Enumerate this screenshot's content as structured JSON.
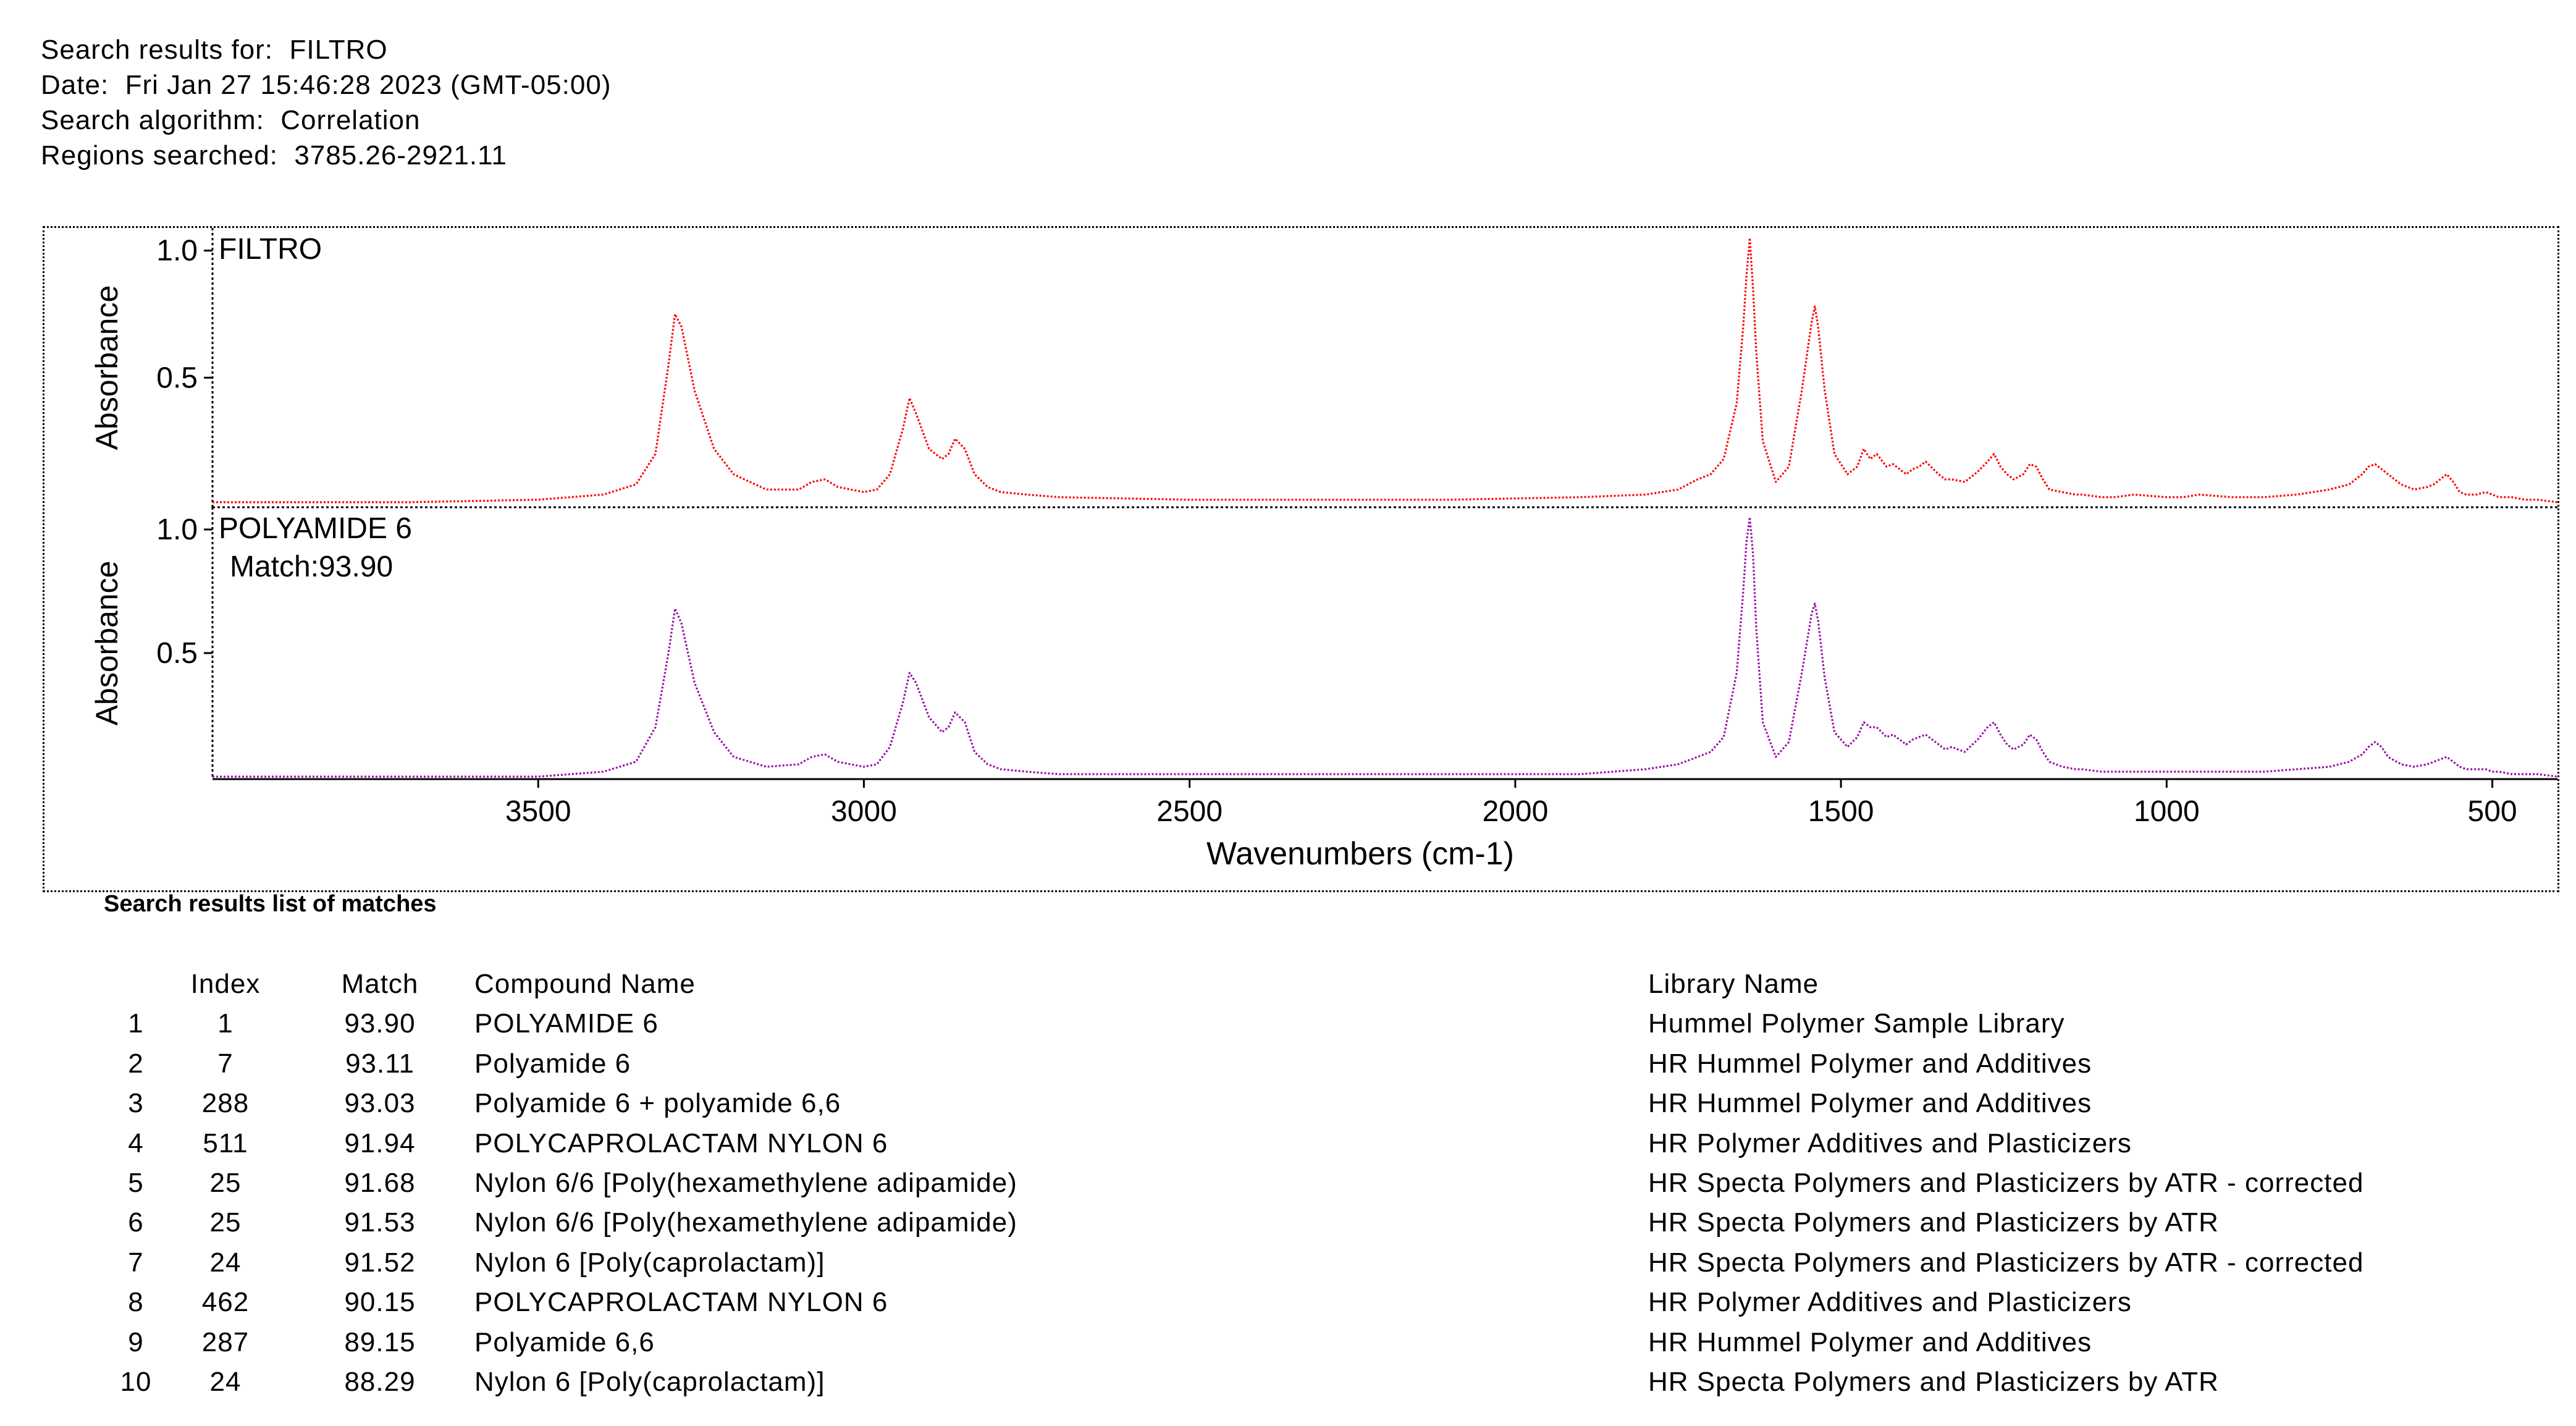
{
  "header": {
    "search_results_for": "Search results for:  FILTRO",
    "date": "Date:  Fri Jan 27 15:46:28 2023 (GMT-05:00)",
    "algorithm": "Search algorithm:  Correlation",
    "regions": "Regions searched:  3785.26-2921.11"
  },
  "chart_data": {
    "type": "line",
    "xlabel": "Wavenumbers (cm-1)",
    "x_reversed": true,
    "xlim": [
      4000,
      400
    ],
    "x_ticks": [
      3500,
      3000,
      2500,
      2000,
      1500,
      1000,
      500
    ],
    "grid": false,
    "panels": [
      {
        "name": "FILTRO",
        "annotation": "",
        "ylabel": "Absorbance",
        "ylim": [
          0,
          1.05
        ],
        "y_ticks": [
          {
            "value": 1.0,
            "label": "1.0"
          },
          {
            "value": 0.5,
            "label": "0.5"
          }
        ],
        "color": "#ff0000",
        "series": [
          {
            "x": [
              4000,
              3700,
              3500,
              3400,
              3350,
              3320,
              3300,
              3290,
              3280,
              3260,
              3230,
              3200,
              3150,
              3100,
              3080,
              3060,
              3040,
              3000,
              2980,
              2960,
              2940,
              2930,
              2920,
              2900,
              2880,
              2870,
              2860,
              2845,
              2830,
              2810,
              2790,
              2750,
              2700,
              2500,
              2300,
              2100,
              1900,
              1800,
              1750,
              1720,
              1700,
              1680,
              1660,
              1650,
              1645,
              1640,
              1635,
              1630,
              1620,
              1600,
              1580,
              1560,
              1545,
              1540,
              1535,
              1525,
              1510,
              1490,
              1475,
              1465,
              1455,
              1445,
              1430,
              1420,
              1400,
              1390,
              1380,
              1370,
              1350,
              1340,
              1330,
              1310,
              1290,
              1275,
              1265,
              1255,
              1245,
              1235,
              1220,
              1210,
              1200,
              1190,
              1180,
              1160,
              1140,
              1130,
              1100,
              1080,
              1050,
              1000,
              975,
              950,
              900,
              850,
              800,
              750,
              720,
              700,
              690,
              680,
              670,
              660,
              640,
              620,
              600,
              590,
              580,
              570,
              560,
              550,
              540,
              525,
              510,
              500,
              490,
              470,
              450,
              430,
              400
            ],
            "y": [
              0.01,
              0.01,
              0.02,
              0.04,
              0.08,
              0.2,
              0.55,
              0.75,
              0.7,
              0.45,
              0.22,
              0.12,
              0.06,
              0.06,
              0.09,
              0.1,
              0.07,
              0.05,
              0.06,
              0.12,
              0.3,
              0.42,
              0.36,
              0.22,
              0.18,
              0.2,
              0.26,
              0.22,
              0.12,
              0.07,
              0.05,
              0.04,
              0.03,
              0.02,
              0.02,
              0.02,
              0.03,
              0.04,
              0.06,
              0.1,
              0.12,
              0.18,
              0.4,
              0.7,
              0.9,
              1.05,
              0.85,
              0.6,
              0.25,
              0.09,
              0.15,
              0.45,
              0.72,
              0.78,
              0.7,
              0.45,
              0.2,
              0.12,
              0.15,
              0.22,
              0.18,
              0.2,
              0.15,
              0.16,
              0.12,
              0.14,
              0.15,
              0.17,
              0.12,
              0.1,
              0.1,
              0.09,
              0.13,
              0.17,
              0.2,
              0.15,
              0.12,
              0.1,
              0.12,
              0.16,
              0.15,
              0.1,
              0.06,
              0.05,
              0.04,
              0.04,
              0.03,
              0.03,
              0.04,
              0.03,
              0.03,
              0.04,
              0.03,
              0.03,
              0.04,
              0.06,
              0.08,
              0.12,
              0.15,
              0.16,
              0.14,
              0.12,
              0.08,
              0.06,
              0.07,
              0.08,
              0.1,
              0.12,
              0.09,
              0.05,
              0.04,
              0.04,
              0.05,
              0.04,
              0.03,
              0.03,
              0.02,
              0.02,
              0.01
            ]
          }
        ]
      },
      {
        "name": "POLYAMIDE 6",
        "annotation": "Match:93.90",
        "ylabel": "Absorbance",
        "ylim": [
          0,
          1.05
        ],
        "y_ticks": [
          {
            "value": 1.0,
            "label": "1.0"
          },
          {
            "value": 0.5,
            "label": "0.5"
          }
        ],
        "color": "#9a10a8",
        "series": [
          {
            "x": [
              4000,
              3700,
              3500,
              3400,
              3350,
              3320,
              3300,
              3290,
              3280,
              3260,
              3230,
              3200,
              3150,
              3100,
              3080,
              3060,
              3040,
              3000,
              2980,
              2960,
              2940,
              2930,
              2920,
              2900,
              2880,
              2870,
              2860,
              2845,
              2830,
              2810,
              2790,
              2750,
              2700,
              2500,
              2300,
              2100,
              1900,
              1800,
              1750,
              1720,
              1700,
              1680,
              1660,
              1650,
              1645,
              1640,
              1635,
              1630,
              1620,
              1600,
              1580,
              1560,
              1545,
              1540,
              1535,
              1525,
              1510,
              1490,
              1475,
              1465,
              1455,
              1445,
              1430,
              1420,
              1400,
              1390,
              1380,
              1370,
              1350,
              1340,
              1330,
              1310,
              1290,
              1275,
              1265,
              1255,
              1245,
              1235,
              1220,
              1210,
              1200,
              1190,
              1180,
              1160,
              1140,
              1130,
              1100,
              1080,
              1050,
              1000,
              975,
              950,
              900,
              850,
              800,
              750,
              720,
              700,
              690,
              680,
              670,
              660,
              640,
              620,
              600,
              590,
              580,
              570,
              560,
              550,
              540,
              525,
              510,
              500,
              490,
              470,
              450,
              430,
              400
            ],
            "y": [
              0.0,
              0.0,
              0.0,
              0.02,
              0.06,
              0.2,
              0.5,
              0.68,
              0.62,
              0.38,
              0.18,
              0.08,
              0.04,
              0.05,
              0.08,
              0.09,
              0.06,
              0.04,
              0.05,
              0.12,
              0.3,
              0.42,
              0.38,
              0.24,
              0.18,
              0.2,
              0.26,
              0.22,
              0.1,
              0.05,
              0.03,
              0.02,
              0.01,
              0.01,
              0.01,
              0.01,
              0.01,
              0.03,
              0.05,
              0.08,
              0.1,
              0.16,
              0.42,
              0.75,
              0.95,
              1.05,
              0.9,
              0.6,
              0.22,
              0.08,
              0.14,
              0.42,
              0.66,
              0.7,
              0.63,
              0.4,
              0.18,
              0.12,
              0.16,
              0.22,
              0.2,
              0.2,
              0.16,
              0.17,
              0.13,
              0.15,
              0.16,
              0.17,
              0.13,
              0.11,
              0.12,
              0.1,
              0.15,
              0.2,
              0.22,
              0.17,
              0.13,
              0.11,
              0.13,
              0.17,
              0.15,
              0.1,
              0.06,
              0.04,
              0.03,
              0.03,
              0.02,
              0.02,
              0.02,
              0.02,
              0.02,
              0.02,
              0.02,
              0.02,
              0.03,
              0.04,
              0.06,
              0.09,
              0.12,
              0.14,
              0.12,
              0.08,
              0.05,
              0.04,
              0.05,
              0.06,
              0.07,
              0.08,
              0.06,
              0.04,
              0.03,
              0.03,
              0.03,
              0.02,
              0.02,
              0.01,
              0.01,
              0.01,
              0.0
            ]
          }
        ]
      }
    ]
  },
  "results": {
    "title": "Search results list of matches",
    "columns": {
      "index": "Index",
      "match": "Match",
      "compound": "Compound Name",
      "library": "Library Name"
    },
    "rows": [
      {
        "rank": "1",
        "index": "1",
        "match": "93.90",
        "compound": "POLYAMIDE 6",
        "library": "Hummel Polymer Sample Library"
      },
      {
        "rank": "2",
        "index": "7",
        "match": "93.11",
        "compound": "Polyamide 6",
        "library": "HR Hummel Polymer and Additives"
      },
      {
        "rank": "3",
        "index": "288",
        "match": "93.03",
        "compound": "Polyamide 6 + polyamide 6,6",
        "library": "HR Hummel Polymer and Additives"
      },
      {
        "rank": "4",
        "index": "511",
        "match": "91.94",
        "compound": "POLYCAPROLACTAM NYLON 6",
        "library": "HR Polymer Additives and Plasticizers"
      },
      {
        "rank": "5",
        "index": "25",
        "match": "91.68",
        "compound": "Nylon 6/6 [Poly(hexamethylene adipamide)",
        "library": "HR Specta Polymers and Plasticizers by ATR - corrected"
      },
      {
        "rank": "6",
        "index": "25",
        "match": "91.53",
        "compound": "Nylon 6/6 [Poly(hexamethylene adipamide)",
        "library": "HR Specta Polymers and Plasticizers by ATR"
      },
      {
        "rank": "7",
        "index": "24",
        "match": "91.52",
        "compound": "Nylon 6 [Poly(caprolactam)]",
        "library": "HR Specta Polymers and Plasticizers by ATR - corrected"
      },
      {
        "rank": "8",
        "index": "462",
        "match": "90.15",
        "compound": "POLYCAPROLACTAM NYLON 6",
        "library": "HR Polymer Additives and Plasticizers"
      },
      {
        "rank": "9",
        "index": "287",
        "match": "89.15",
        "compound": "Polyamide 6,6",
        "library": "HR Hummel Polymer and Additives"
      },
      {
        "rank": "10",
        "index": "24",
        "match": "88.29",
        "compound": "Nylon 6 [Poly(caprolactam)]",
        "library": "HR Specta Polymers and Plasticizers by ATR"
      }
    ]
  }
}
